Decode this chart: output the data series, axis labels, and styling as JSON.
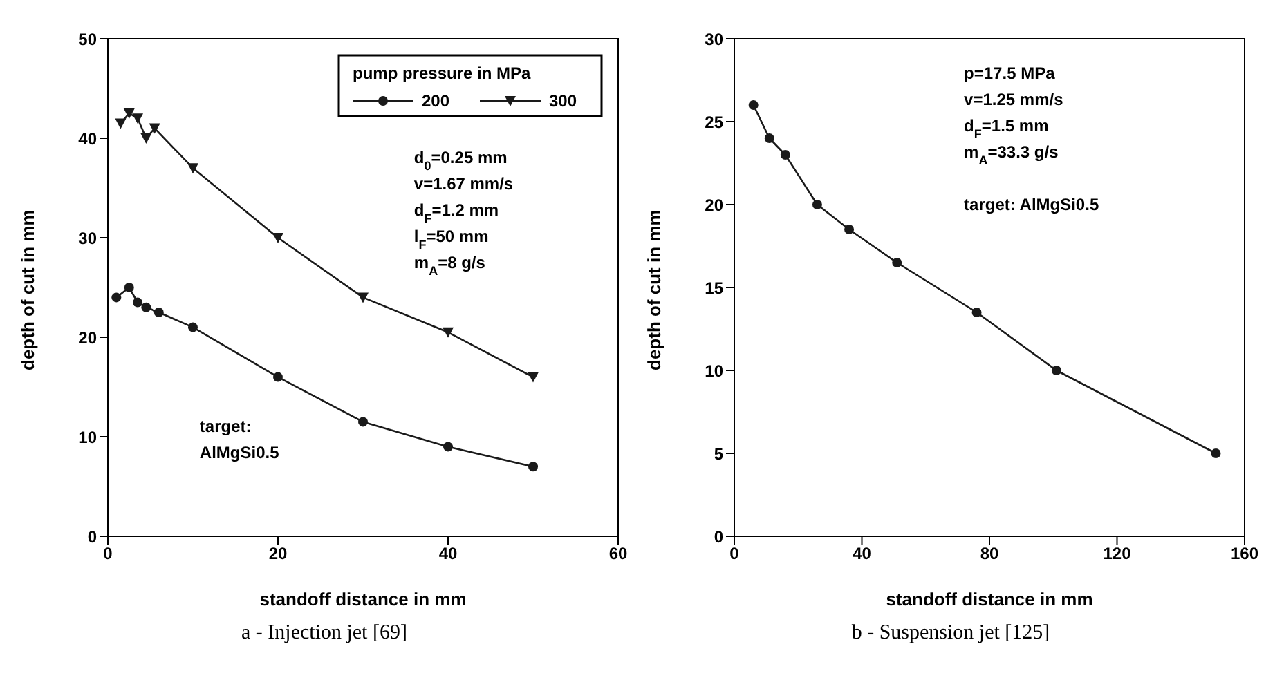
{
  "chart_data": [
    {
      "type": "line",
      "title": "a - Injection jet [69]",
      "xlabel": "standoff distance in mm",
      "ylabel": "depth of cut in mm",
      "legend_title": "pump pressure in MPa",
      "legend": "top right",
      "grid": false,
      "xlim": [
        0,
        60
      ],
      "xticks": [
        0,
        20,
        40,
        60
      ],
      "ylim": [
        0,
        50
      ],
      "yticks": [
        0,
        10,
        20,
        30,
        40,
        50
      ],
      "line_style": "solid",
      "series": [
        {
          "name": "200",
          "color": "#1a1a1a",
          "marker": "circle",
          "x": [
            1,
            2.5,
            3.5,
            4.5,
            6,
            10,
            20,
            30,
            40,
            50
          ],
          "values": [
            24,
            25,
            23.5,
            23,
            22.5,
            21,
            16,
            11.5,
            9,
            7
          ]
        },
        {
          "name": "300",
          "color": "#1a1a1a",
          "marker": "triangle",
          "x": [
            1.5,
            2.5,
            3.5,
            4.5,
            5.5,
            10,
            20,
            30,
            40,
            50
          ],
          "values": [
            41.5,
            42.5,
            42,
            40,
            41,
            37,
            30,
            24,
            20.5,
            16
          ]
        }
      ],
      "annotations": [
        "d$_{0}$=0.25 mm\nv=1.67 mm/s\nd$_{F}$=1.2 mm\nl$_{F}$=50 mm\nm$_{A}$=8 g/s",
        "target:\nAlMgSi0.5"
      ]
    },
    {
      "type": "line",
      "title": "b - Suspension jet [125]",
      "xlabel": "standoff distance in mm",
      "ylabel": "depth of cut in mm",
      "grid": false,
      "xlim": [
        0,
        160
      ],
      "xticks": [
        0,
        40,
        80,
        120,
        160
      ],
      "ylim": [
        0,
        30
      ],
      "yticks": [
        0,
        5,
        10,
        15,
        20,
        25,
        30
      ],
      "line_style": "solid",
      "series": [
        {
          "color": "#1a1a1a",
          "marker": "circle",
          "x": [
            6,
            11,
            16,
            26,
            36,
            51,
            76,
            101,
            151
          ],
          "values": [
            26,
            24,
            23,
            20,
            18.5,
            16.5,
            13.5,
            10,
            5
          ]
        }
      ],
      "annotations": [
        "p=17.5 MPa\nv=1.25 mm/s\nd$_{F}$=1.5 mm\nm$_{A}$=33.3 g/s\n\ntarget: AlMgSi0.5"
      ]
    }
  ]
}
